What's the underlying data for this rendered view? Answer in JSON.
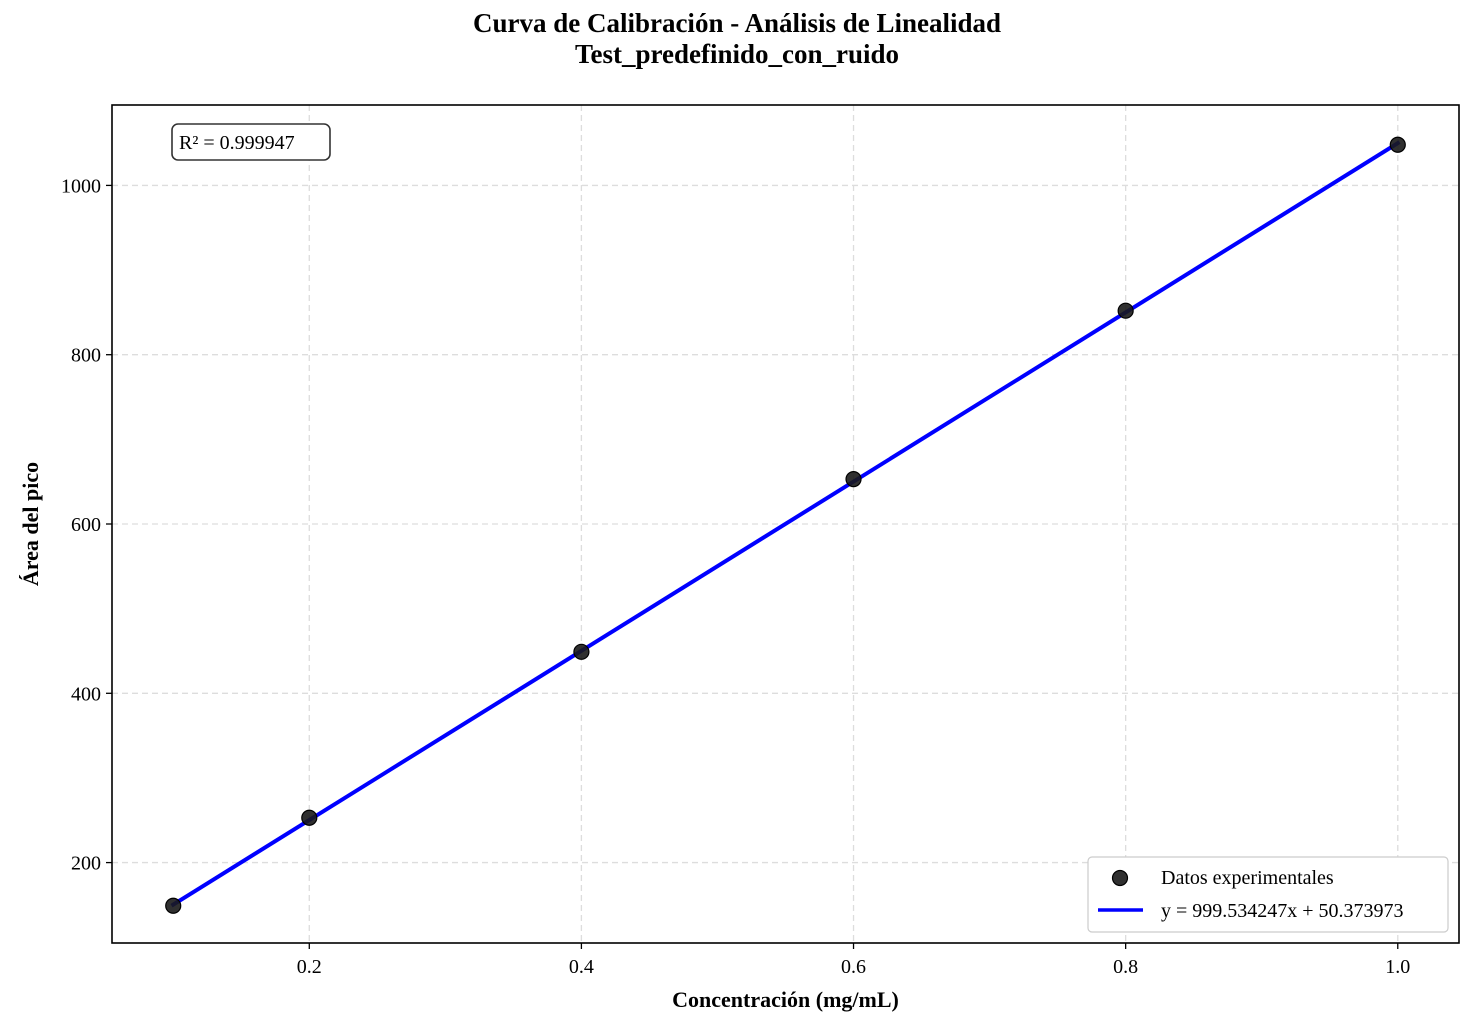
{
  "chart_data": {
    "type": "scatter",
    "title": "Curva de Calibración - Análisis de Linealidad",
    "subtitle": "Test_predefinido_con_ruido",
    "xlabel": "Concentración (mg/mL)",
    "ylabel": "Área del pico",
    "xlim": [
      0.055,
      1.045
    ],
    "ylim": [
      105,
      1095
    ],
    "xticks": [
      0.2,
      0.4,
      0.6,
      0.8,
      1.0
    ],
    "xtick_labels": [
      "0.2",
      "0.4",
      "0.6",
      "0.8",
      "1.0"
    ],
    "yticks": [
      200,
      400,
      600,
      800,
      1000
    ],
    "ytick_labels": [
      "200",
      "400",
      "600",
      "800",
      "1000"
    ],
    "grid": true,
    "legend_position": "lower-right",
    "annotation": "R² = 0.999947",
    "series": [
      {
        "name": "Datos experimentales",
        "kind": "scatter",
        "color": "#1a1a1a",
        "x": [
          0.1,
          0.2,
          0.4,
          0.6,
          0.8,
          1.0
        ],
        "y": [
          149,
          253,
          449,
          653,
          852,
          1048
        ]
      },
      {
        "name": "y = 999.534247x + 50.373973",
        "kind": "line",
        "color": "#0000ff",
        "slope": 999.534247,
        "intercept": 50.373973,
        "x": [
          0.1,
          1.0
        ]
      }
    ]
  }
}
